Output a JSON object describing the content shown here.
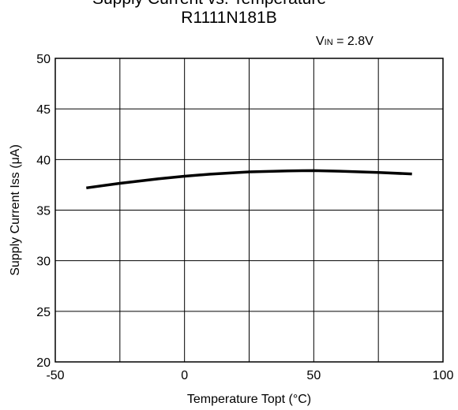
{
  "chart_data": {
    "type": "line",
    "title": "Supply Current vs. Temperature",
    "subtitle": "R1111N181B",
    "condition": {
      "prefix": "V",
      "subscript": "IN",
      "value": " = 2.8V"
    },
    "xlabel": "Temperature Topt (°C)",
    "ylabel": "Supply Current Iss (μA)",
    "xlim": [
      -50,
      100
    ],
    "ylim": [
      20,
      50
    ],
    "xticks": [
      -50,
      0,
      50,
      100
    ],
    "yticks": [
      20,
      25,
      30,
      35,
      40,
      45,
      50
    ],
    "x_grid": [
      -50,
      -25,
      0,
      25,
      50,
      75,
      100
    ],
    "grid": true,
    "series": [
      {
        "x": [
          -38,
          -25,
          -10,
          0,
          10,
          25,
          40,
          50,
          60,
          75,
          88
        ],
        "values": [
          37.2,
          37.65,
          38.1,
          38.35,
          38.55,
          38.78,
          38.88,
          38.9,
          38.85,
          38.72,
          38.58
        ]
      }
    ],
    "colors": {
      "line": "#000000",
      "grid": "#000000"
    }
  }
}
